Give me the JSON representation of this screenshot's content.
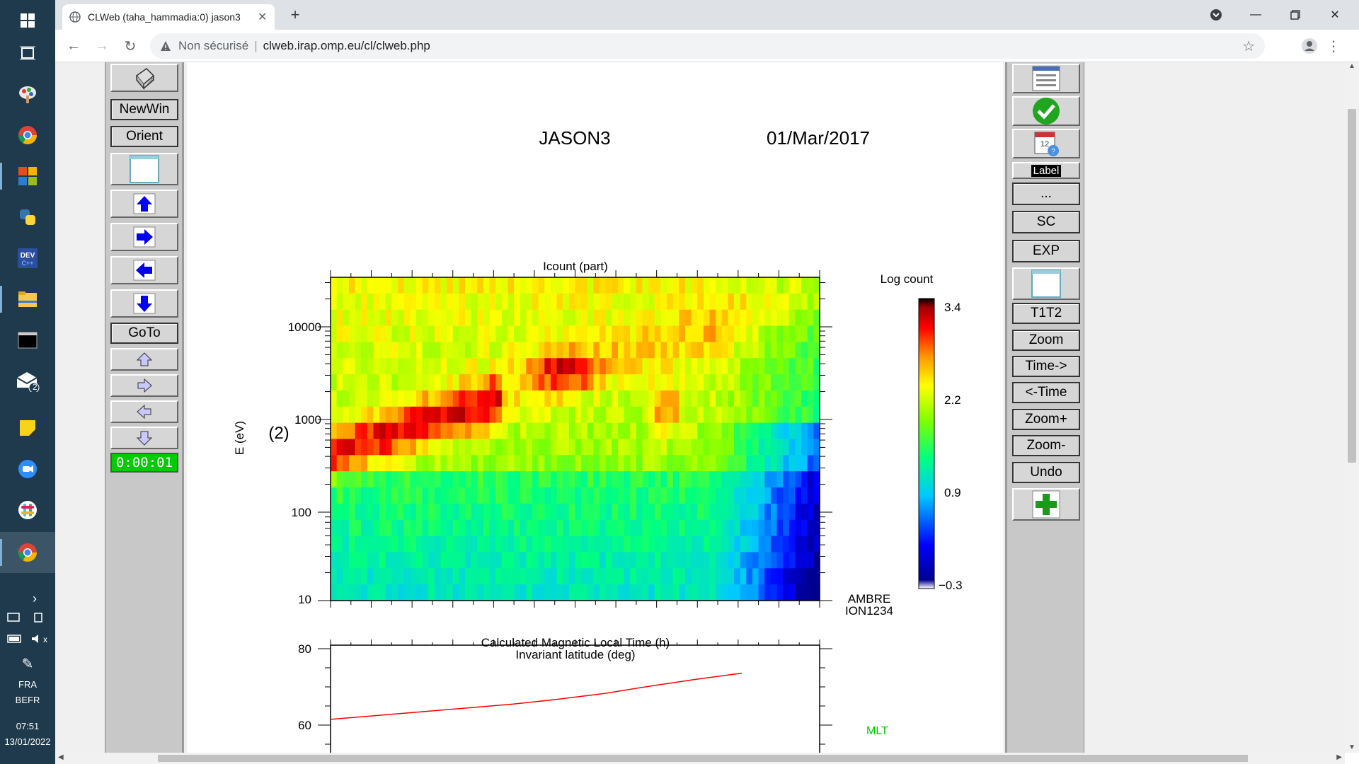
{
  "browser": {
    "tab_title": "CLWeb (taha_hammadia:0) jason3",
    "security_label": "Non sécurisé",
    "url": "clweb.irap.omp.eu/cl/clweb.php"
  },
  "taskbar": {
    "language": "FRA",
    "layout": "BEFR",
    "time": "07:51",
    "date": "13/01/2022",
    "mail_badge": "2"
  },
  "left_panel": {
    "newwin": "NewWin",
    "orient": "Orient",
    "goto": "GoTo",
    "timer": "0:00:01"
  },
  "right_panel": {
    "label": "Label",
    "more": "...",
    "sc": "SC",
    "exp": "EXP",
    "t1t2": "T1T2",
    "zoom": "Zoom",
    "time_fwd": "Time->",
    "time_back": "<-Time",
    "zoom_plus": "Zoom+",
    "zoom_minus": "Zoom-",
    "undo": "Undo"
  },
  "plot": {
    "mission": "JASON3",
    "date": "01/Mar/2017",
    "panel_title": "Icount (part)",
    "ylabel": "E (eV)",
    "panel_index": "(2)",
    "yticks": [
      "10000",
      "1000",
      "100",
      "10"
    ],
    "colorbar_title": "Log count",
    "colorbar_ticks": [
      "3.4",
      "2.2",
      "0.9",
      "−0.3"
    ],
    "instrument": "AMBRE",
    "species": "ION1234",
    "panel2_title1": "Calculated Magnetic Local Time (h)",
    "panel2_title2": "Invariant latitude (deg)",
    "panel2_yticks": [
      "80",
      "60"
    ],
    "panel2_series": "MLT",
    "line_color": "#ff0000",
    "series_color": "#00cc00"
  },
  "chart_data": [
    {
      "type": "heatmap",
      "title": "Icount (part)",
      "ylabel": "E (eV)",
      "yscale": "log",
      "ylim": [
        10,
        30000
      ],
      "colorbar": {
        "label": "Log count",
        "range": [
          -0.3,
          3.4
        ],
        "ticks": [
          3.4,
          2.2,
          0.9,
          -0.3
        ]
      }
    },
    {
      "type": "line",
      "title": "Invariant latitude (deg)",
      "ylim": [
        55,
        80
      ],
      "yticks": [
        80,
        60
      ],
      "series": [
        {
          "values": [
            61.5,
            62.5,
            63.5,
            64.5,
            65.5,
            66.8,
            68.3,
            70.2,
            72.0,
            73.6
          ]
        }
      ]
    }
  ]
}
